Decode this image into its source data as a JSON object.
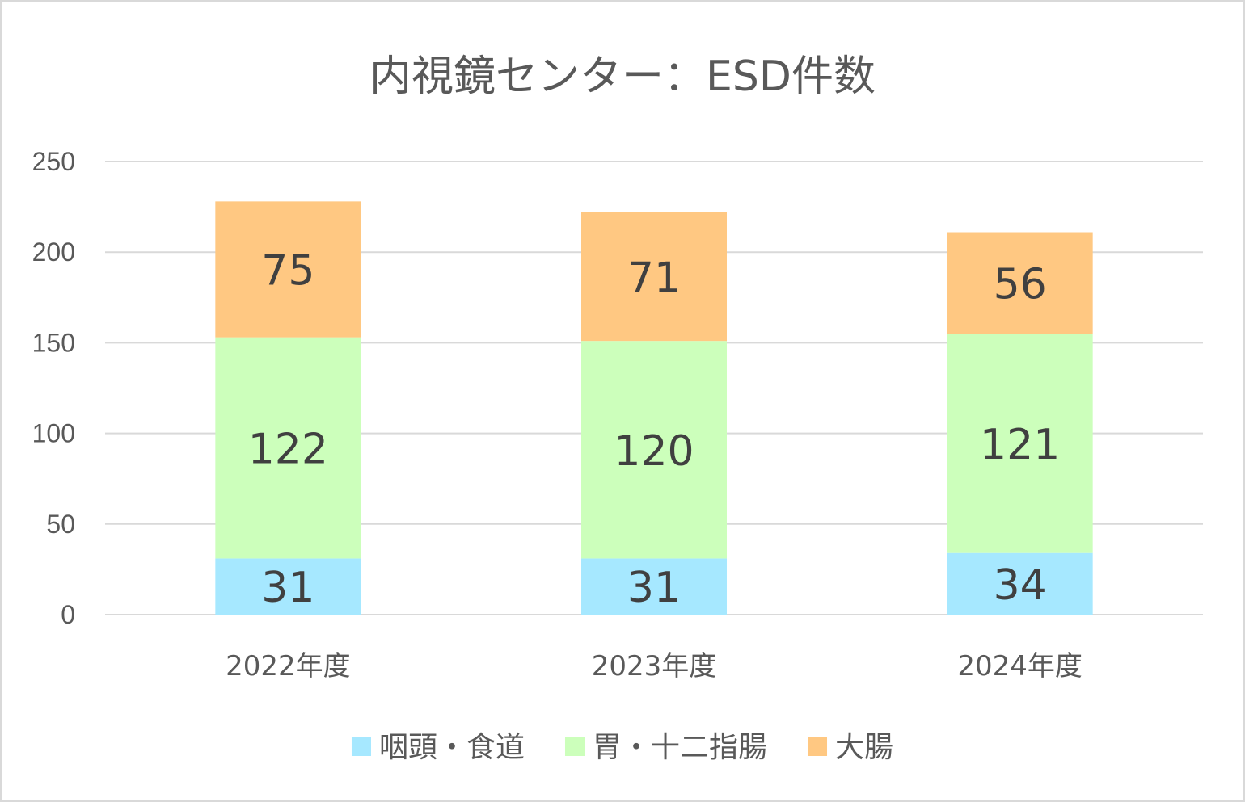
{
  "chart_data": {
    "type": "bar",
    "stacked": true,
    "title": "内視鏡センター：ESD件数",
    "xlabel": "",
    "ylabel": "",
    "ylim": [
      0,
      250
    ],
    "yticks": [
      "0",
      "50",
      "100",
      "150",
      "200",
      "250"
    ],
    "grid": true,
    "legend_position": "bottom",
    "categories": [
      "2022年度",
      "2023年度",
      "2024年度"
    ],
    "series": [
      {
        "name": "咽頭・食道",
        "color": "#a6e8ff",
        "values": [
          31,
          31,
          34
        ]
      },
      {
        "name": "胃・十二指腸",
        "color": "#ccffbb",
        "values": [
          122,
          120,
          121
        ]
      },
      {
        "name": "大腸",
        "color": "#ffc882",
        "values": [
          75,
          71,
          56
        ]
      }
    ]
  }
}
